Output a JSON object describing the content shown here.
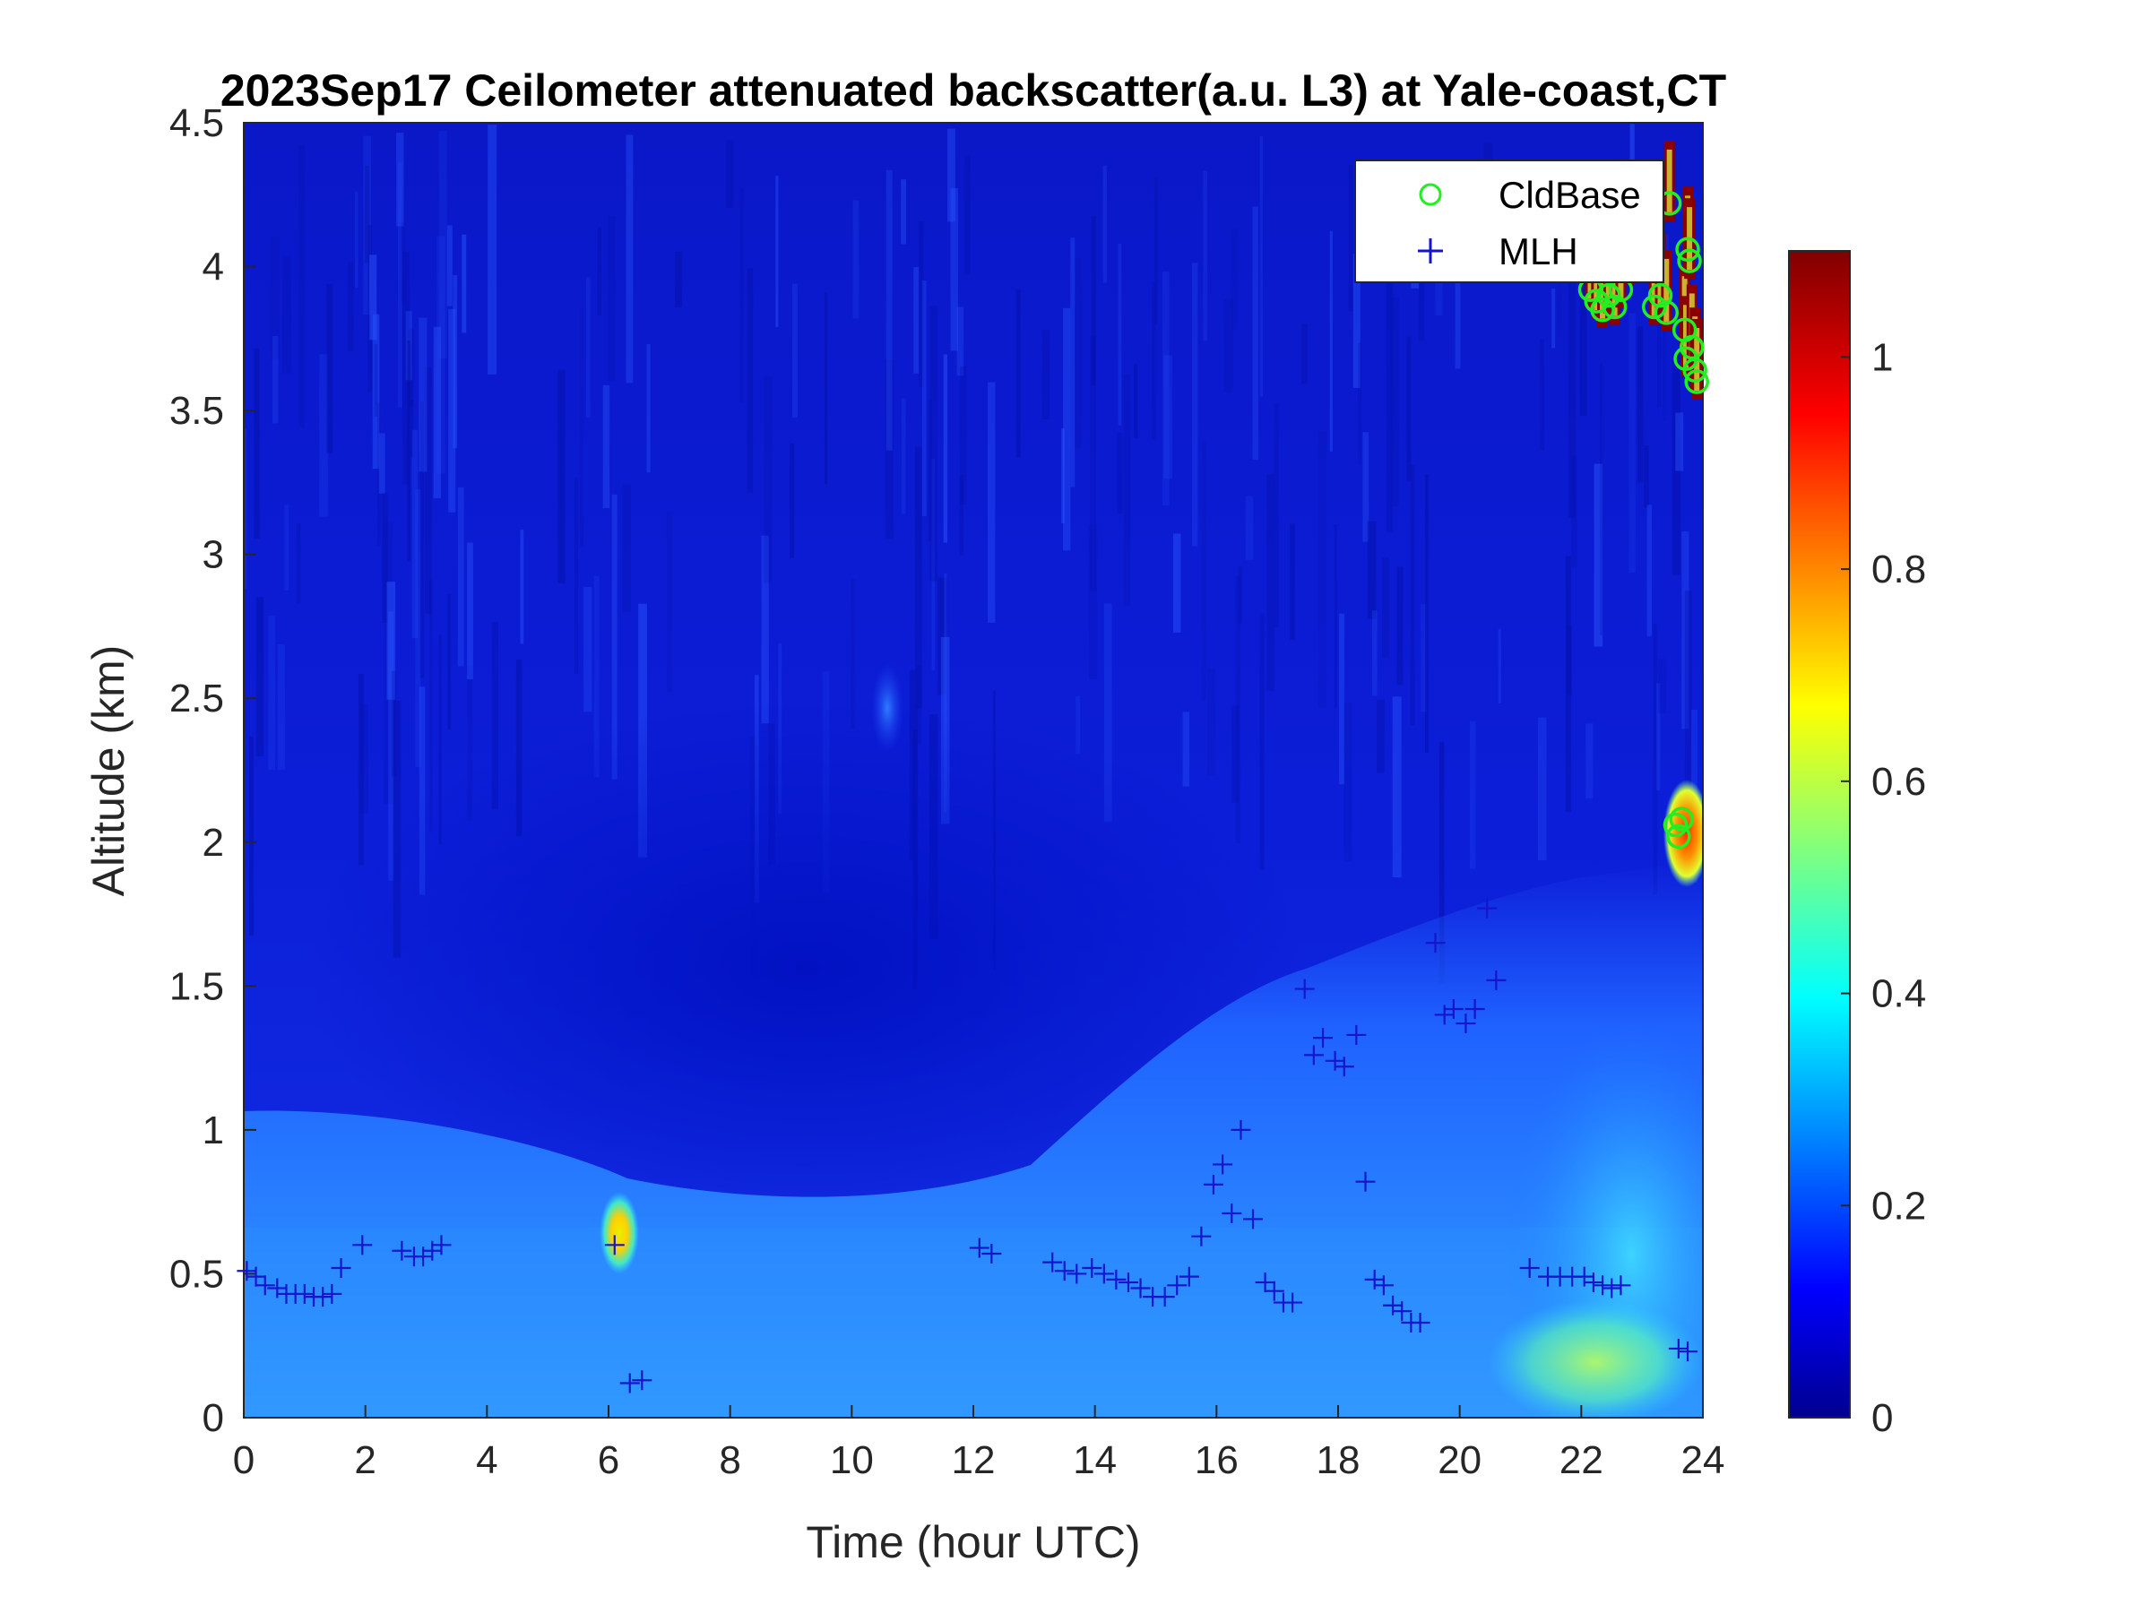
{
  "chart_data": {
    "type": "heatmap",
    "title": "2023Sep17 Ceilometer attenuated backscatter(a.u. L3) at Yale-coast,CT",
    "xlabel": "Time (hour UTC)",
    "ylabel": "Altitude (km)",
    "xlim": [
      0,
      24
    ],
    "ylim": [
      0,
      4.5
    ],
    "x_ticks": [
      "0",
      "2",
      "4",
      "6",
      "8",
      "10",
      "12",
      "14",
      "16",
      "18",
      "20",
      "22",
      "24"
    ],
    "y_ticks": [
      "0",
      "0.5",
      "1",
      "1.5",
      "2",
      "2.5",
      "3",
      "3.5",
      "4",
      "4.5"
    ],
    "colorbar": {
      "colormap": "jet",
      "range": [
        0,
        1.1
      ],
      "ticks": [
        "0",
        "0.2",
        "0.4",
        "0.6",
        "0.8",
        "1"
      ]
    },
    "legend": {
      "location": "top-right",
      "entries": [
        {
          "label": "CldBase",
          "marker": "o",
          "color": "#22ee22"
        },
        {
          "label": "MLH",
          "marker": "+",
          "color": "#1515cc"
        }
      ]
    },
    "series": [
      {
        "name": "MLH",
        "marker": "+",
        "color": "#1515cc",
        "points": [
          [
            0.05,
            0.51
          ],
          [
            0.2,
            0.49
          ],
          [
            0.35,
            0.46
          ],
          [
            0.55,
            0.45
          ],
          [
            0.7,
            0.43
          ],
          [
            0.85,
            0.43
          ],
          [
            1.0,
            0.43
          ],
          [
            1.15,
            0.42
          ],
          [
            1.3,
            0.42
          ],
          [
            1.45,
            0.43
          ],
          [
            1.6,
            0.52
          ],
          [
            1.95,
            0.6
          ],
          [
            2.6,
            0.58
          ],
          [
            2.8,
            0.56
          ],
          [
            2.95,
            0.56
          ],
          [
            3.1,
            0.58
          ],
          [
            3.25,
            0.6
          ],
          [
            6.1,
            0.6
          ],
          [
            6.35,
            0.12
          ],
          [
            6.55,
            0.13
          ],
          [
            12.1,
            0.59
          ],
          [
            12.3,
            0.57
          ],
          [
            13.3,
            0.54
          ],
          [
            13.5,
            0.51
          ],
          [
            13.7,
            0.5
          ],
          [
            13.95,
            0.52
          ],
          [
            14.15,
            0.5
          ],
          [
            14.35,
            0.48
          ],
          [
            14.55,
            0.47
          ],
          [
            14.75,
            0.45
          ],
          [
            14.95,
            0.42
          ],
          [
            15.15,
            0.42
          ],
          [
            15.35,
            0.46
          ],
          [
            15.55,
            0.49
          ],
          [
            15.75,
            0.63
          ],
          [
            15.95,
            0.81
          ],
          [
            16.1,
            0.88
          ],
          [
            16.25,
            0.71
          ],
          [
            16.4,
            1.0
          ],
          [
            16.6,
            0.69
          ],
          [
            16.8,
            0.47
          ],
          [
            16.95,
            0.44
          ],
          [
            17.1,
            0.4
          ],
          [
            17.25,
            0.4
          ],
          [
            17.45,
            1.49
          ],
          [
            17.6,
            1.26
          ],
          [
            17.75,
            1.32
          ],
          [
            17.95,
            1.24
          ],
          [
            18.1,
            1.22
          ],
          [
            18.3,
            1.33
          ],
          [
            18.45,
            0.82
          ],
          [
            18.6,
            0.48
          ],
          [
            18.75,
            0.46
          ],
          [
            18.9,
            0.39
          ],
          [
            19.05,
            0.37
          ],
          [
            19.2,
            0.33
          ],
          [
            19.35,
            0.33
          ],
          [
            19.6,
            1.65
          ],
          [
            19.75,
            1.4
          ],
          [
            19.9,
            1.42
          ],
          [
            20.1,
            1.37
          ],
          [
            20.25,
            1.42
          ],
          [
            20.45,
            1.77
          ],
          [
            20.6,
            1.52
          ],
          [
            21.15,
            0.52
          ],
          [
            21.45,
            0.49
          ],
          [
            21.65,
            0.49
          ],
          [
            21.85,
            0.49
          ],
          [
            22.05,
            0.49
          ],
          [
            22.2,
            0.47
          ],
          [
            22.35,
            0.46
          ],
          [
            22.5,
            0.45
          ],
          [
            22.65,
            0.46
          ],
          [
            23.6,
            0.24
          ],
          [
            23.75,
            0.23
          ]
        ]
      },
      {
        "name": "CldBase",
        "marker": "o",
        "color": "#22ee22",
        "points": [
          [
            22.15,
            3.92
          ],
          [
            22.25,
            3.88
          ],
          [
            22.35,
            3.85
          ],
          [
            22.45,
            3.9
          ],
          [
            22.55,
            3.86
          ],
          [
            22.65,
            3.92
          ],
          [
            22.8,
            4.0
          ],
          [
            23.1,
            4.02
          ],
          [
            23.2,
            3.86
          ],
          [
            23.3,
            3.9
          ],
          [
            23.4,
            3.84
          ],
          [
            23.45,
            4.22
          ],
          [
            23.55,
            2.06
          ],
          [
            23.6,
            2.02
          ],
          [
            23.65,
            2.08
          ],
          [
            23.7,
            3.78
          ],
          [
            23.72,
            3.68
          ],
          [
            23.75,
            4.06
          ],
          [
            23.78,
            4.02
          ],
          [
            23.82,
            3.72
          ],
          [
            23.87,
            3.64
          ],
          [
            23.9,
            3.6
          ]
        ]
      }
    ]
  }
}
